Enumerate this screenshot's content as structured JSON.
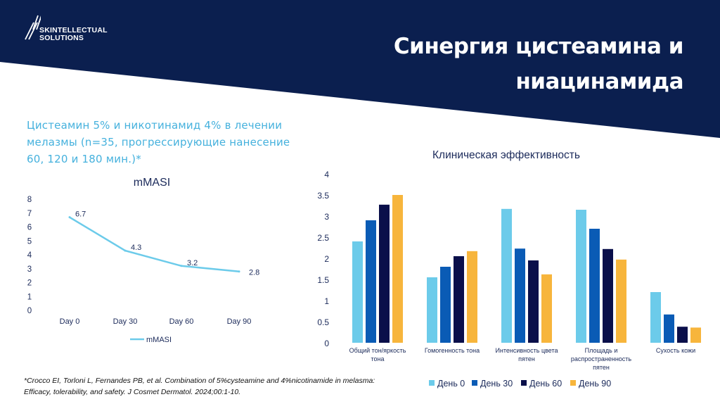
{
  "brand": {
    "logo_line1": "SKINTELLECTUAL",
    "logo_line2": "SOLUTIONS",
    "navy": "#0b1f4f"
  },
  "header": {
    "title_line1": "Синергия цистеамина и",
    "title_line2": "ниацинамида"
  },
  "subtitle": "Цистеамин 5% и никотинамид 4% в лечении мелазмы (n=35, прогрессирующие нанесение 60, 120 и 180 мин.)*",
  "reference": {
    "line1": "*Crocco EI, Torloni L, Fernandes PB, et al. Combination of 5%cysteamine and 4%nicotinamide in melasma:",
    "line2": "Efficacy, tolerability, and safety. J Cosmet Dermatol. 2024;00:1-10."
  },
  "chart_data": [
    {
      "type": "line",
      "title": "mMASI",
      "categories": [
        "Day 0",
        "Day 30",
        "Day 60",
        "Day 90"
      ],
      "series": [
        {
          "name": "mMASI",
          "values": [
            6.7,
            4.3,
            3.2,
            2.8
          ],
          "color": "#6ccbea"
        }
      ],
      "ylim": [
        0,
        8
      ],
      "yticks": [
        "0",
        "1",
        "2",
        "3",
        "4",
        "5",
        "6",
        "7",
        "8"
      ],
      "grid": false,
      "legend": "bottom"
    },
    {
      "type": "bar",
      "title": "Клиническая эффективность",
      "categories": [
        "Общий тон/яркость тона",
        "Гомогенность тона",
        "Интенсивность цвета пятен",
        "Площадь и распространенность пятен",
        "Сухость кожи"
      ],
      "series": [
        {
          "name": "День 0",
          "values": [
            2.4,
            1.55,
            3.17,
            3.15,
            1.2
          ],
          "color": "#6ccbea"
        },
        {
          "name": "День 30",
          "values": [
            2.9,
            1.8,
            2.23,
            2.7,
            0.67
          ],
          "color": "#0a5bb5"
        },
        {
          "name": "День 60",
          "values": [
            3.27,
            2.05,
            1.95,
            2.22,
            0.38
          ],
          "color": "#0a0f4a"
        },
        {
          "name": "День 90",
          "values": [
            3.5,
            2.17,
            1.62,
            1.97,
            0.36
          ],
          "color": "#f7b53c"
        }
      ],
      "ylim": [
        0,
        4
      ],
      "yticks": [
        "0",
        "0.5",
        "1",
        "1.5",
        "2",
        "2.5",
        "3",
        "3.5",
        "4"
      ],
      "grid": false,
      "legend": "bottom"
    }
  ]
}
